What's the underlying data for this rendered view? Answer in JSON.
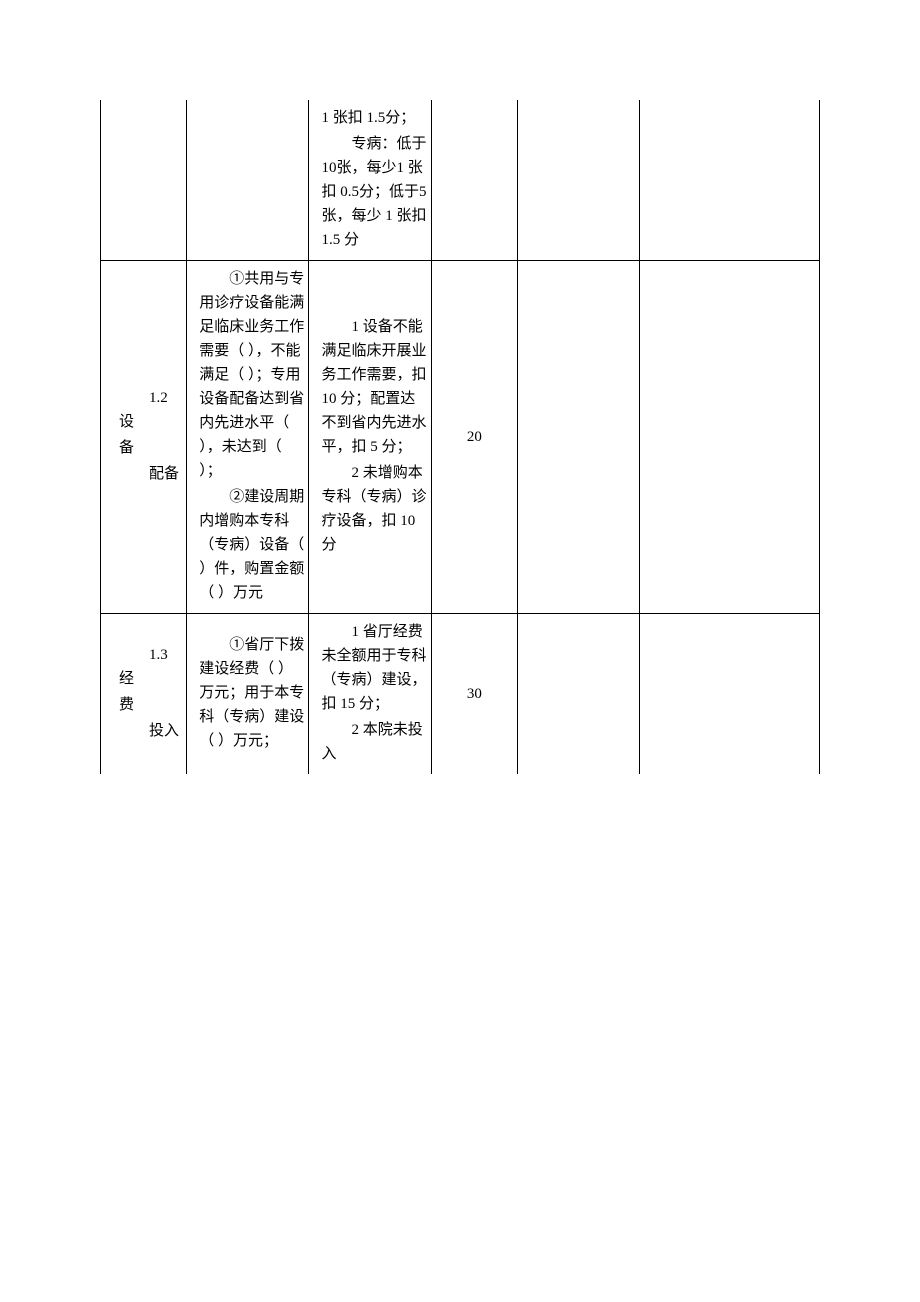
{
  "table": {
    "row1": {
      "col3_part1": "1 张扣 1.5分；",
      "col3_part2": "专病：低于 10张，每少1 张扣 0.5分；低于5 张，每少 1 张扣1.5 分"
    },
    "row2": {
      "col1_line1": "1.2 设",
      "col1_line2": "备",
      "col1_line3": "配备",
      "col2_part1": "①共用与专用诊疗设备能满足临床业务工作需要（ ），不能满足（ ）；专用设备配备达到省内先进水平（ ），未达到（ ）；",
      "col2_part2": "②建设周期内增购本专科（专病）设备（ ）件，购置金额（ ）万元",
      "col3_part1": "1 设备不能满足临床开展业务工作需要，扣 10 分；配置达不到省内先进水平，扣 5 分；",
      "col3_part2": "2 未增购本专科（专病）诊疗设备，扣 10分",
      "col4": "20"
    },
    "row3": {
      "col1_line1": "1.3 经",
      "col1_line2": "费",
      "col1_line3": "投入",
      "col2_part1": "①省厅下拨建设经费（ ）万元；用于本专科（专病）建设（ ）万元；",
      "col3_part1": "1 省厅经费未全额用于专科（专病）建设，扣 15 分；",
      "col3_part2": "2 本院未投入",
      "col4": "30"
    }
  }
}
